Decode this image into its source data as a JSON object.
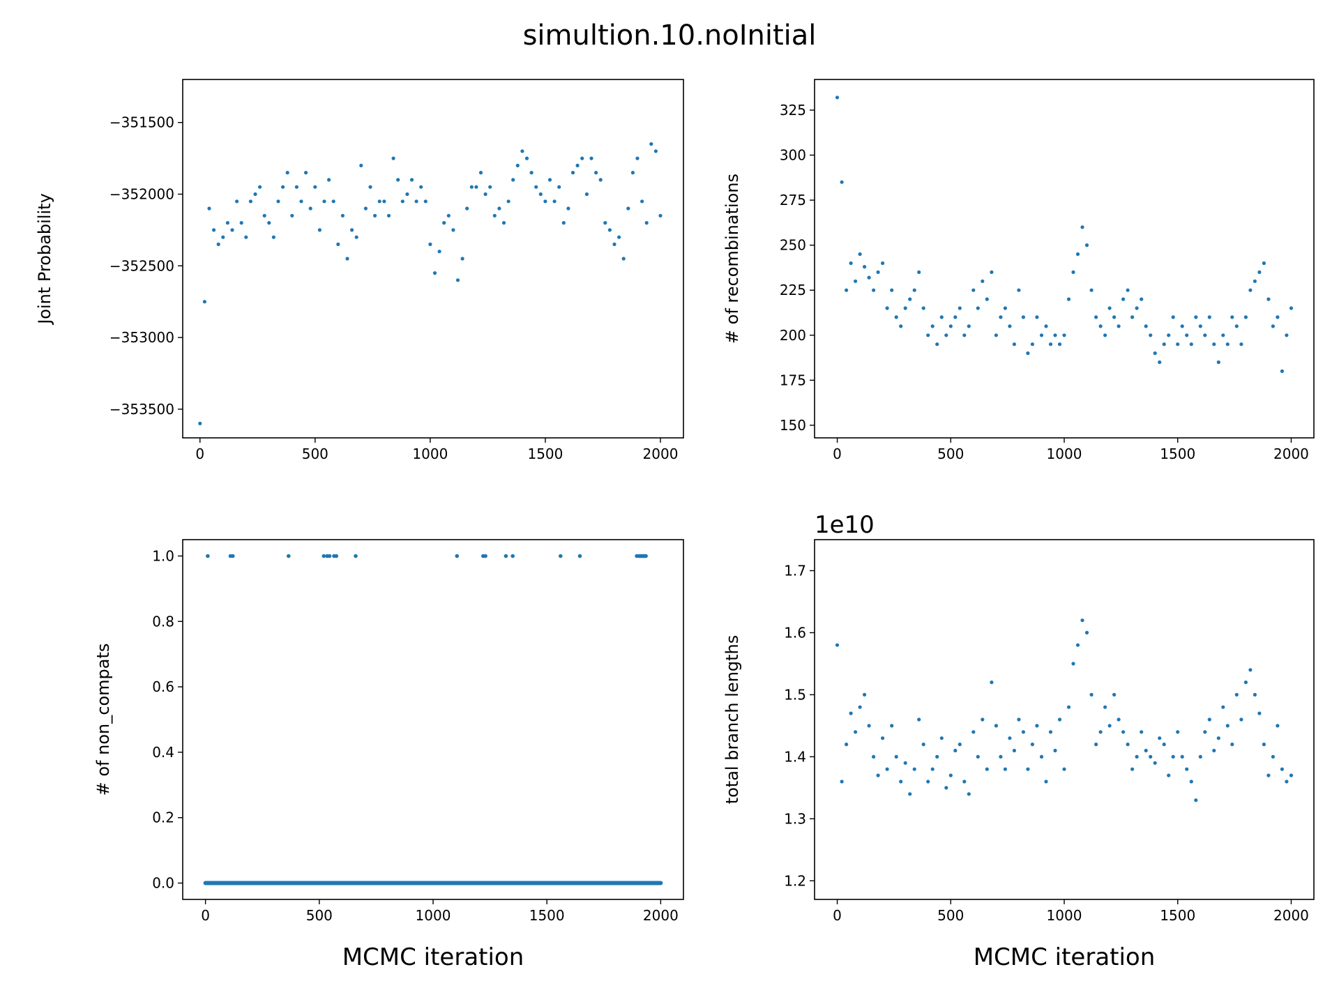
{
  "suptitle": "simultion.10.noInitial",
  "colors": {
    "points": "#1f77b4",
    "axes": "#000000",
    "background": "#ffffff"
  },
  "chart_data": [
    {
      "id": "joint-probability",
      "type": "scatter",
      "title": "",
      "xlabel": "",
      "ylabel": "Joint Probability",
      "xlim": [
        -75,
        2100
      ],
      "ylim": [
        -353700,
        -351200
      ],
      "xticks": [
        0,
        500,
        1000,
        1500,
        2000
      ],
      "xtick_labels": [
        "0",
        "500",
        "1000",
        "1500",
        "2000"
      ],
      "yticks": [
        -353500,
        -353000,
        -352500,
        -352000,
        -351500
      ],
      "ytick_labels": [
        "−353500",
        "−353000",
        "−352500",
        "−352000",
        "−351500"
      ],
      "grid": false,
      "x": [
        0,
        20,
        40,
        60,
        80,
        100,
        120,
        140,
        160,
        180,
        200,
        220,
        240,
        260,
        280,
        300,
        320,
        340,
        360,
        380,
        400,
        420,
        440,
        460,
        480,
        500,
        520,
        540,
        560,
        580,
        600,
        620,
        640,
        660,
        680,
        700,
        720,
        740,
        760,
        780,
        800,
        820,
        840,
        860,
        880,
        900,
        920,
        940,
        960,
        980,
        1000,
        1020,
        1040,
        1060,
        1080,
        1100,
        1120,
        1140,
        1160,
        1180,
        1200,
        1220,
        1240,
        1260,
        1280,
        1300,
        1320,
        1340,
        1360,
        1380,
        1400,
        1420,
        1440,
        1460,
        1480,
        1500,
        1520,
        1540,
        1560,
        1580,
        1600,
        1620,
        1640,
        1660,
        1680,
        1700,
        1720,
        1740,
        1760,
        1780,
        1800,
        1820,
        1840,
        1860,
        1880,
        1900,
        1920,
        1940,
        1960,
        1980,
        2000
      ],
      "y": [
        -353600,
        -352750,
        -352100,
        -352250,
        -352350,
        -352300,
        -352200,
        -352250,
        -352050,
        -352200,
        -352300,
        -352050,
        -352000,
        -351950,
        -352150,
        -352200,
        -352300,
        -352050,
        -351950,
        -351850,
        -352150,
        -351950,
        -352050,
        -351850,
        -352100,
        -351950,
        -352250,
        -352050,
        -351900,
        -352050,
        -352350,
        -352150,
        -352450,
        -352250,
        -352300,
        -351800,
        -352100,
        -351950,
        -352150,
        -352050,
        -352050,
        -352150,
        -351750,
        -351900,
        -352050,
        -352000,
        -351900,
        -352050,
        -351950,
        -352050,
        -352350,
        -352550,
        -352400,
        -352200,
        -352150,
        -352250,
        -352600,
        -352450,
        -352100,
        -351950,
        -351950,
        -351850,
        -352000,
        -351950,
        -352150,
        -352100,
        -352200,
        -352050,
        -351900,
        -351800,
        -351700,
        -351750,
        -351850,
        -351950,
        -352000,
        -352050,
        -351900,
        -352050,
        -351950,
        -352200,
        -352100,
        -351850,
        -351800,
        -351750,
        -352000,
        -351750,
        -351850,
        -351900,
        -352200,
        -352250,
        -352350,
        -352300,
        -352450,
        -352100,
        -351850,
        -351750,
        -352050,
        -352200,
        -351650,
        -351700,
        -352150
      ]
    },
    {
      "id": "recombinations",
      "type": "scatter",
      "title": "",
      "xlabel": "",
      "ylabel": "# of recombinations",
      "xlim": [
        -100,
        2100
      ],
      "ylim": [
        143,
        342
      ],
      "xticks": [
        0,
        500,
        1000,
        1500,
        2000
      ],
      "xtick_labels": [
        "0",
        "500",
        "1000",
        "1500",
        "2000"
      ],
      "yticks": [
        150,
        175,
        200,
        225,
        250,
        275,
        300,
        325
      ],
      "ytick_labels": [
        "150",
        "175",
        "200",
        "225",
        "250",
        "275",
        "300",
        "325"
      ],
      "grid": false,
      "x": [
        0,
        20,
        40,
        60,
        80,
        100,
        120,
        140,
        160,
        180,
        200,
        220,
        240,
        260,
        280,
        300,
        320,
        340,
        360,
        380,
        400,
        420,
        440,
        460,
        480,
        500,
        520,
        540,
        560,
        580,
        600,
        620,
        640,
        660,
        680,
        700,
        720,
        740,
        760,
        780,
        800,
        820,
        840,
        860,
        880,
        900,
        920,
        940,
        960,
        980,
        1000,
        1020,
        1040,
        1060,
        1080,
        1100,
        1120,
        1140,
        1160,
        1180,
        1200,
        1220,
        1240,
        1260,
        1280,
        1300,
        1320,
        1340,
        1360,
        1380,
        1400,
        1420,
        1440,
        1460,
        1480,
        1500,
        1520,
        1540,
        1560,
        1580,
        1600,
        1620,
        1640,
        1660,
        1680,
        1700,
        1720,
        1740,
        1760,
        1780,
        1800,
        1820,
        1840,
        1860,
        1880,
        1900,
        1920,
        1940,
        1960,
        1980,
        2000
      ],
      "y": [
        332,
        285,
        225,
        240,
        230,
        245,
        238,
        232,
        225,
        235,
        240,
        215,
        225,
        210,
        205,
        215,
        220,
        225,
        235,
        215,
        200,
        205,
        195,
        210,
        200,
        205,
        210,
        215,
        200,
        205,
        225,
        215,
        230,
        220,
        235,
        200,
        210,
        215,
        205,
        195,
        225,
        210,
        190,
        195,
        210,
        200,
        205,
        195,
        200,
        195,
        200,
        220,
        235,
        245,
        260,
        250,
        225,
        210,
        205,
        200,
        215,
        210,
        205,
        220,
        225,
        210,
        215,
        220,
        205,
        200,
        190,
        185,
        195,
        200,
        210,
        195,
        205,
        200,
        195,
        210,
        205,
        200,
        210,
        195,
        185,
        200,
        195,
        210,
        205,
        195,
        210,
        225,
        230,
        235,
        240,
        220,
        205,
        210,
        180,
        200,
        215
      ]
    },
    {
      "id": "non-compats",
      "type": "scatter",
      "title": "",
      "xlabel": "MCMC iteration",
      "ylabel": "# of non_compats",
      "xlim": [
        -100,
        2100
      ],
      "ylim": [
        -0.05,
        1.05
      ],
      "xticks": [
        0,
        500,
        1000,
        1500,
        2000
      ],
      "xtick_labels": [
        "0",
        "500",
        "1000",
        "1500",
        "2000"
      ],
      "yticks": [
        0.0,
        0.2,
        0.4,
        0.6,
        0.8,
        1.0
      ],
      "ytick_labels": [
        "0.0",
        "0.2",
        "0.4",
        "0.6",
        "0.8",
        "1.0"
      ],
      "grid": false,
      "x_ones": [
        10,
        110,
        120,
        365,
        520,
        535,
        545,
        565,
        575,
        660,
        1105,
        1220,
        1230,
        1320,
        1350,
        1560,
        1645,
        1895,
        1905,
        1910,
        1915,
        1920,
        1925,
        1930,
        1935
      ],
      "zeros_range": [
        0,
        2000
      ]
    },
    {
      "id": "branch-lengths",
      "type": "scatter",
      "title": "",
      "xlabel": "MCMC iteration",
      "ylabel": "total branch lengths",
      "offset_text": "1e10",
      "xlim": [
        -100,
        2100
      ],
      "ylim": [
        1.17,
        1.75
      ],
      "xticks": [
        0,
        500,
        1000,
        1500,
        2000
      ],
      "xtick_labels": [
        "0",
        "500",
        "1000",
        "1500",
        "2000"
      ],
      "yticks": [
        1.2,
        1.3,
        1.4,
        1.5,
        1.6,
        1.7
      ],
      "ytick_labels": [
        "1.2",
        "1.3",
        "1.4",
        "1.5",
        "1.6",
        "1.7"
      ],
      "grid": false,
      "x": [
        0,
        20,
        40,
        60,
        80,
        100,
        120,
        140,
        160,
        180,
        200,
        220,
        240,
        260,
        280,
        300,
        320,
        340,
        360,
        380,
        400,
        420,
        440,
        460,
        480,
        500,
        520,
        540,
        560,
        580,
        600,
        620,
        640,
        660,
        680,
        700,
        720,
        740,
        760,
        780,
        800,
        820,
        840,
        860,
        880,
        900,
        920,
        940,
        960,
        980,
        1000,
        1020,
        1040,
        1060,
        1080,
        1100,
        1120,
        1140,
        1160,
        1180,
        1200,
        1220,
        1240,
        1260,
        1280,
        1300,
        1320,
        1340,
        1360,
        1380,
        1400,
        1420,
        1440,
        1460,
        1480,
        1500,
        1520,
        1540,
        1560,
        1580,
        1600,
        1620,
        1640,
        1660,
        1680,
        1700,
        1720,
        1740,
        1760,
        1780,
        1800,
        1820,
        1840,
        1860,
        1880,
        1900,
        1920,
        1940,
        1960,
        1980,
        2000
      ],
      "y": [
        1.58,
        1.36,
        1.42,
        1.47,
        1.44,
        1.48,
        1.5,
        1.45,
        1.4,
        1.37,
        1.43,
        1.38,
        1.45,
        1.4,
        1.36,
        1.39,
        1.34,
        1.38,
        1.46,
        1.42,
        1.36,
        1.38,
        1.4,
        1.43,
        1.35,
        1.37,
        1.41,
        1.42,
        1.36,
        1.34,
        1.44,
        1.4,
        1.46,
        1.38,
        1.52,
        1.45,
        1.4,
        1.38,
        1.43,
        1.41,
        1.46,
        1.44,
        1.38,
        1.42,
        1.45,
        1.4,
        1.36,
        1.44,
        1.41,
        1.46,
        1.38,
        1.48,
        1.55,
        1.58,
        1.62,
        1.6,
        1.5,
        1.42,
        1.44,
        1.48,
        1.45,
        1.5,
        1.46,
        1.44,
        1.42,
        1.38,
        1.4,
        1.44,
        1.41,
        1.4,
        1.39,
        1.43,
        1.42,
        1.37,
        1.4,
        1.44,
        1.4,
        1.38,
        1.36,
        1.33,
        1.4,
        1.44,
        1.46,
        1.41,
        1.43,
        1.48,
        1.45,
        1.42,
        1.5,
        1.46,
        1.52,
        1.54,
        1.5,
        1.47,
        1.42,
        1.37,
        1.4,
        1.45,
        1.38,
        1.36,
        1.37
      ]
    }
  ]
}
